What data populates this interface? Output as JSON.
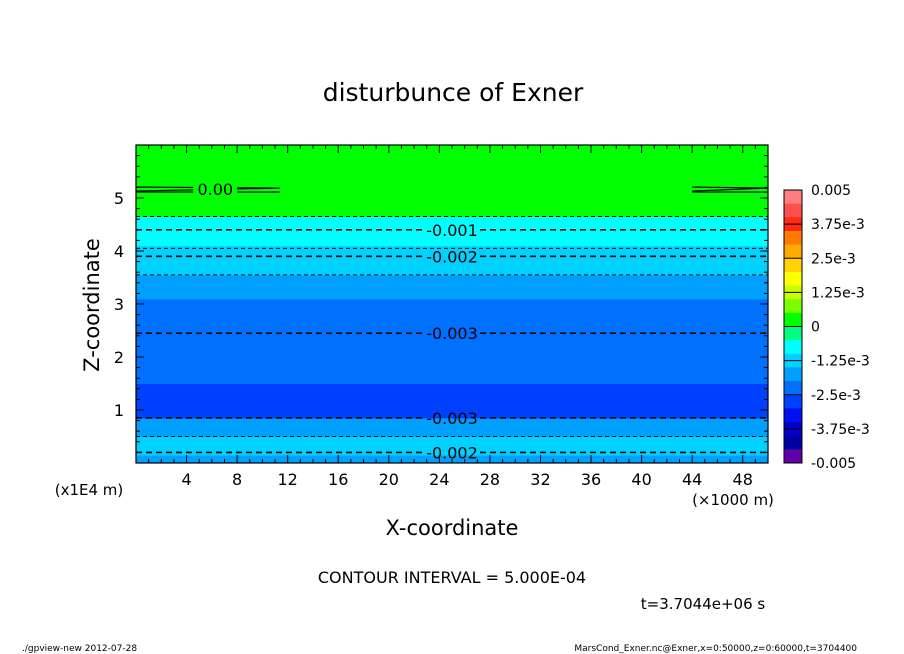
{
  "chart_data": {
    "type": "heatmap",
    "title": "disturbunce of Exner",
    "xlabel": "X-coordinate",
    "ylabel": "Z-coordinate",
    "x_unit_label": "(×1000 m)",
    "y_unit_label": "(x1E4 m)",
    "xlim": [
      0,
      50
    ],
    "ylim": [
      0,
      6
    ],
    "x_ticks": [
      4,
      8,
      12,
      16,
      20,
      24,
      28,
      32,
      36,
      40,
      44,
      48
    ],
    "y_ticks": [
      1,
      2,
      3,
      4,
      5
    ],
    "colorbar": {
      "levels": [
        0.005,
        0.00375,
        0.0025,
        0.00125,
        0,
        -0.00125,
        -0.0025,
        -0.00375,
        -0.005
      ],
      "labels": [
        "0.005",
        "3.75e-3",
        "2.5e-3",
        "1.25e-3",
        "0",
        "-1.25e-3",
        "-2.5e-3",
        "-3.75e-3",
        "-0.005"
      ],
      "colors": [
        "#ff8080",
        "#ff5050",
        "#ff2a14",
        "#ff7a00",
        "#ffaa00",
        "#ffd200",
        "#ffff00",
        "#c8ff00",
        "#78ff00",
        "#00ff00",
        "#00ff80",
        "#00ffff",
        "#00d2ff",
        "#00a0ff",
        "#0070ff",
        "#0040ff",
        "#0010f0",
        "#0000c8",
        "#0000a0",
        "#6000a8"
      ]
    },
    "bands": [
      {
        "z_min": 0.0,
        "z_max": 0.15,
        "color": "#00a0ff"
      },
      {
        "z_min": 0.15,
        "z_max": 0.5,
        "color": "#00d2ff"
      },
      {
        "z_min": 0.5,
        "z_max": 0.85,
        "color": "#00a0ff"
      },
      {
        "z_min": 0.85,
        "z_max": 1.5,
        "color": "#0040ff"
      },
      {
        "z_min": 1.5,
        "z_max": 2.45,
        "color": "#0070ff"
      },
      {
        "z_min": 2.45,
        "z_max": 3.1,
        "color": "#0070ff"
      },
      {
        "z_min": 3.1,
        "z_max": 3.55,
        "color": "#00a0ff"
      },
      {
        "z_min": 3.55,
        "z_max": 3.8,
        "color": "#00d2ff"
      },
      {
        "z_min": 3.8,
        "z_max": 4.1,
        "color": "#00d2ff"
      },
      {
        "z_min": 4.1,
        "z_max": 4.65,
        "color": "#00ffff"
      },
      {
        "z_min": 4.65,
        "z_max": 6.0,
        "color": "#00ff00"
      }
    ],
    "contours": [
      {
        "label": "0.00",
        "style": "solid",
        "z": 5.15,
        "x_ranges": [
          [
            0,
            11.4
          ],
          [
            44,
            50
          ]
        ]
      },
      {
        "label": "-0.001",
        "style": "dashed",
        "z": 4.4
      },
      {
        "label": "-0.002",
        "style": "dashed",
        "z": 3.9
      },
      {
        "label": "-0.003",
        "style": "dashed",
        "z": 2.45
      },
      {
        "label": "-0.003",
        "style": "dashed",
        "z": 0.85
      },
      {
        "label": "-0.002",
        "style": "dashed",
        "z": 0.2
      }
    ],
    "extra_dashed_z": [
      4.65,
      4.05,
      3.55,
      0.5
    ],
    "contour_interval_text": "CONTOUR INTERVAL = 5.000E-04",
    "time_text": "t=3.7044e+06 s"
  },
  "footer": {
    "left": "./gpview-new  2012-07-28",
    "right": "MarsCond_Exner.nc@Exner,x=0:50000,z=0:60000,t=3704400"
  }
}
